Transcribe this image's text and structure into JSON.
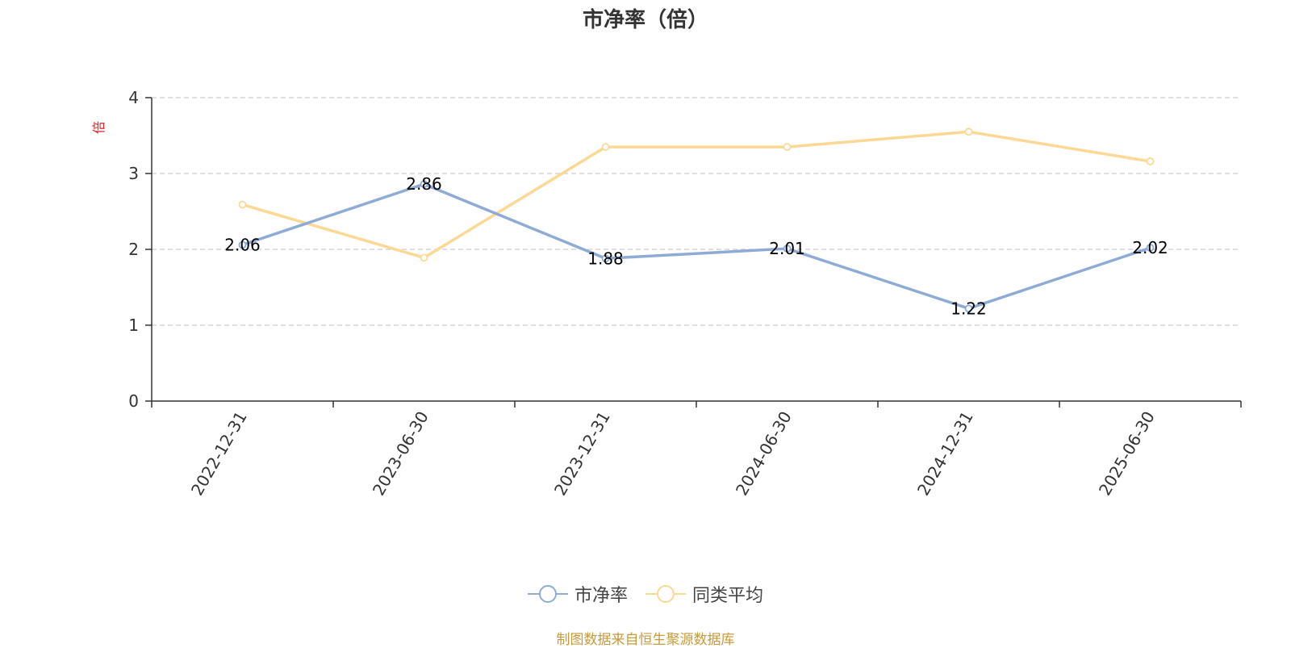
{
  "title": "市净率（倍）",
  "source_note": "制图数据来自恒生聚源数据库",
  "colors": {
    "series_pb": "#8eabd6",
    "series_avg": "#fbd994",
    "unit_label": "#e02020",
    "source_note": "#c89a3a",
    "grid": "#cccccc",
    "axis": "#333333"
  },
  "chart_data": {
    "type": "line",
    "title": "市净率（倍）",
    "xlabel": "",
    "ylabel": "倍",
    "x": [
      "2022-12-31",
      "2023-06-30",
      "2023-12-31",
      "2024-06-30",
      "2024-12-31",
      "2025-06-30"
    ],
    "ylim": [
      0,
      4
    ],
    "yticks": [
      0,
      1,
      2,
      3,
      4
    ],
    "grid": true,
    "legend_position": "bottom-center",
    "series": [
      {
        "name": "市净率",
        "values": [
          2.06,
          2.86,
          1.88,
          2.01,
          1.22,
          2.02
        ],
        "labels_shown": true
      },
      {
        "name": "同类平均",
        "values": [
          2.59,
          1.89,
          3.35,
          3.35,
          3.55,
          3.16
        ],
        "labels_shown": false
      }
    ]
  }
}
